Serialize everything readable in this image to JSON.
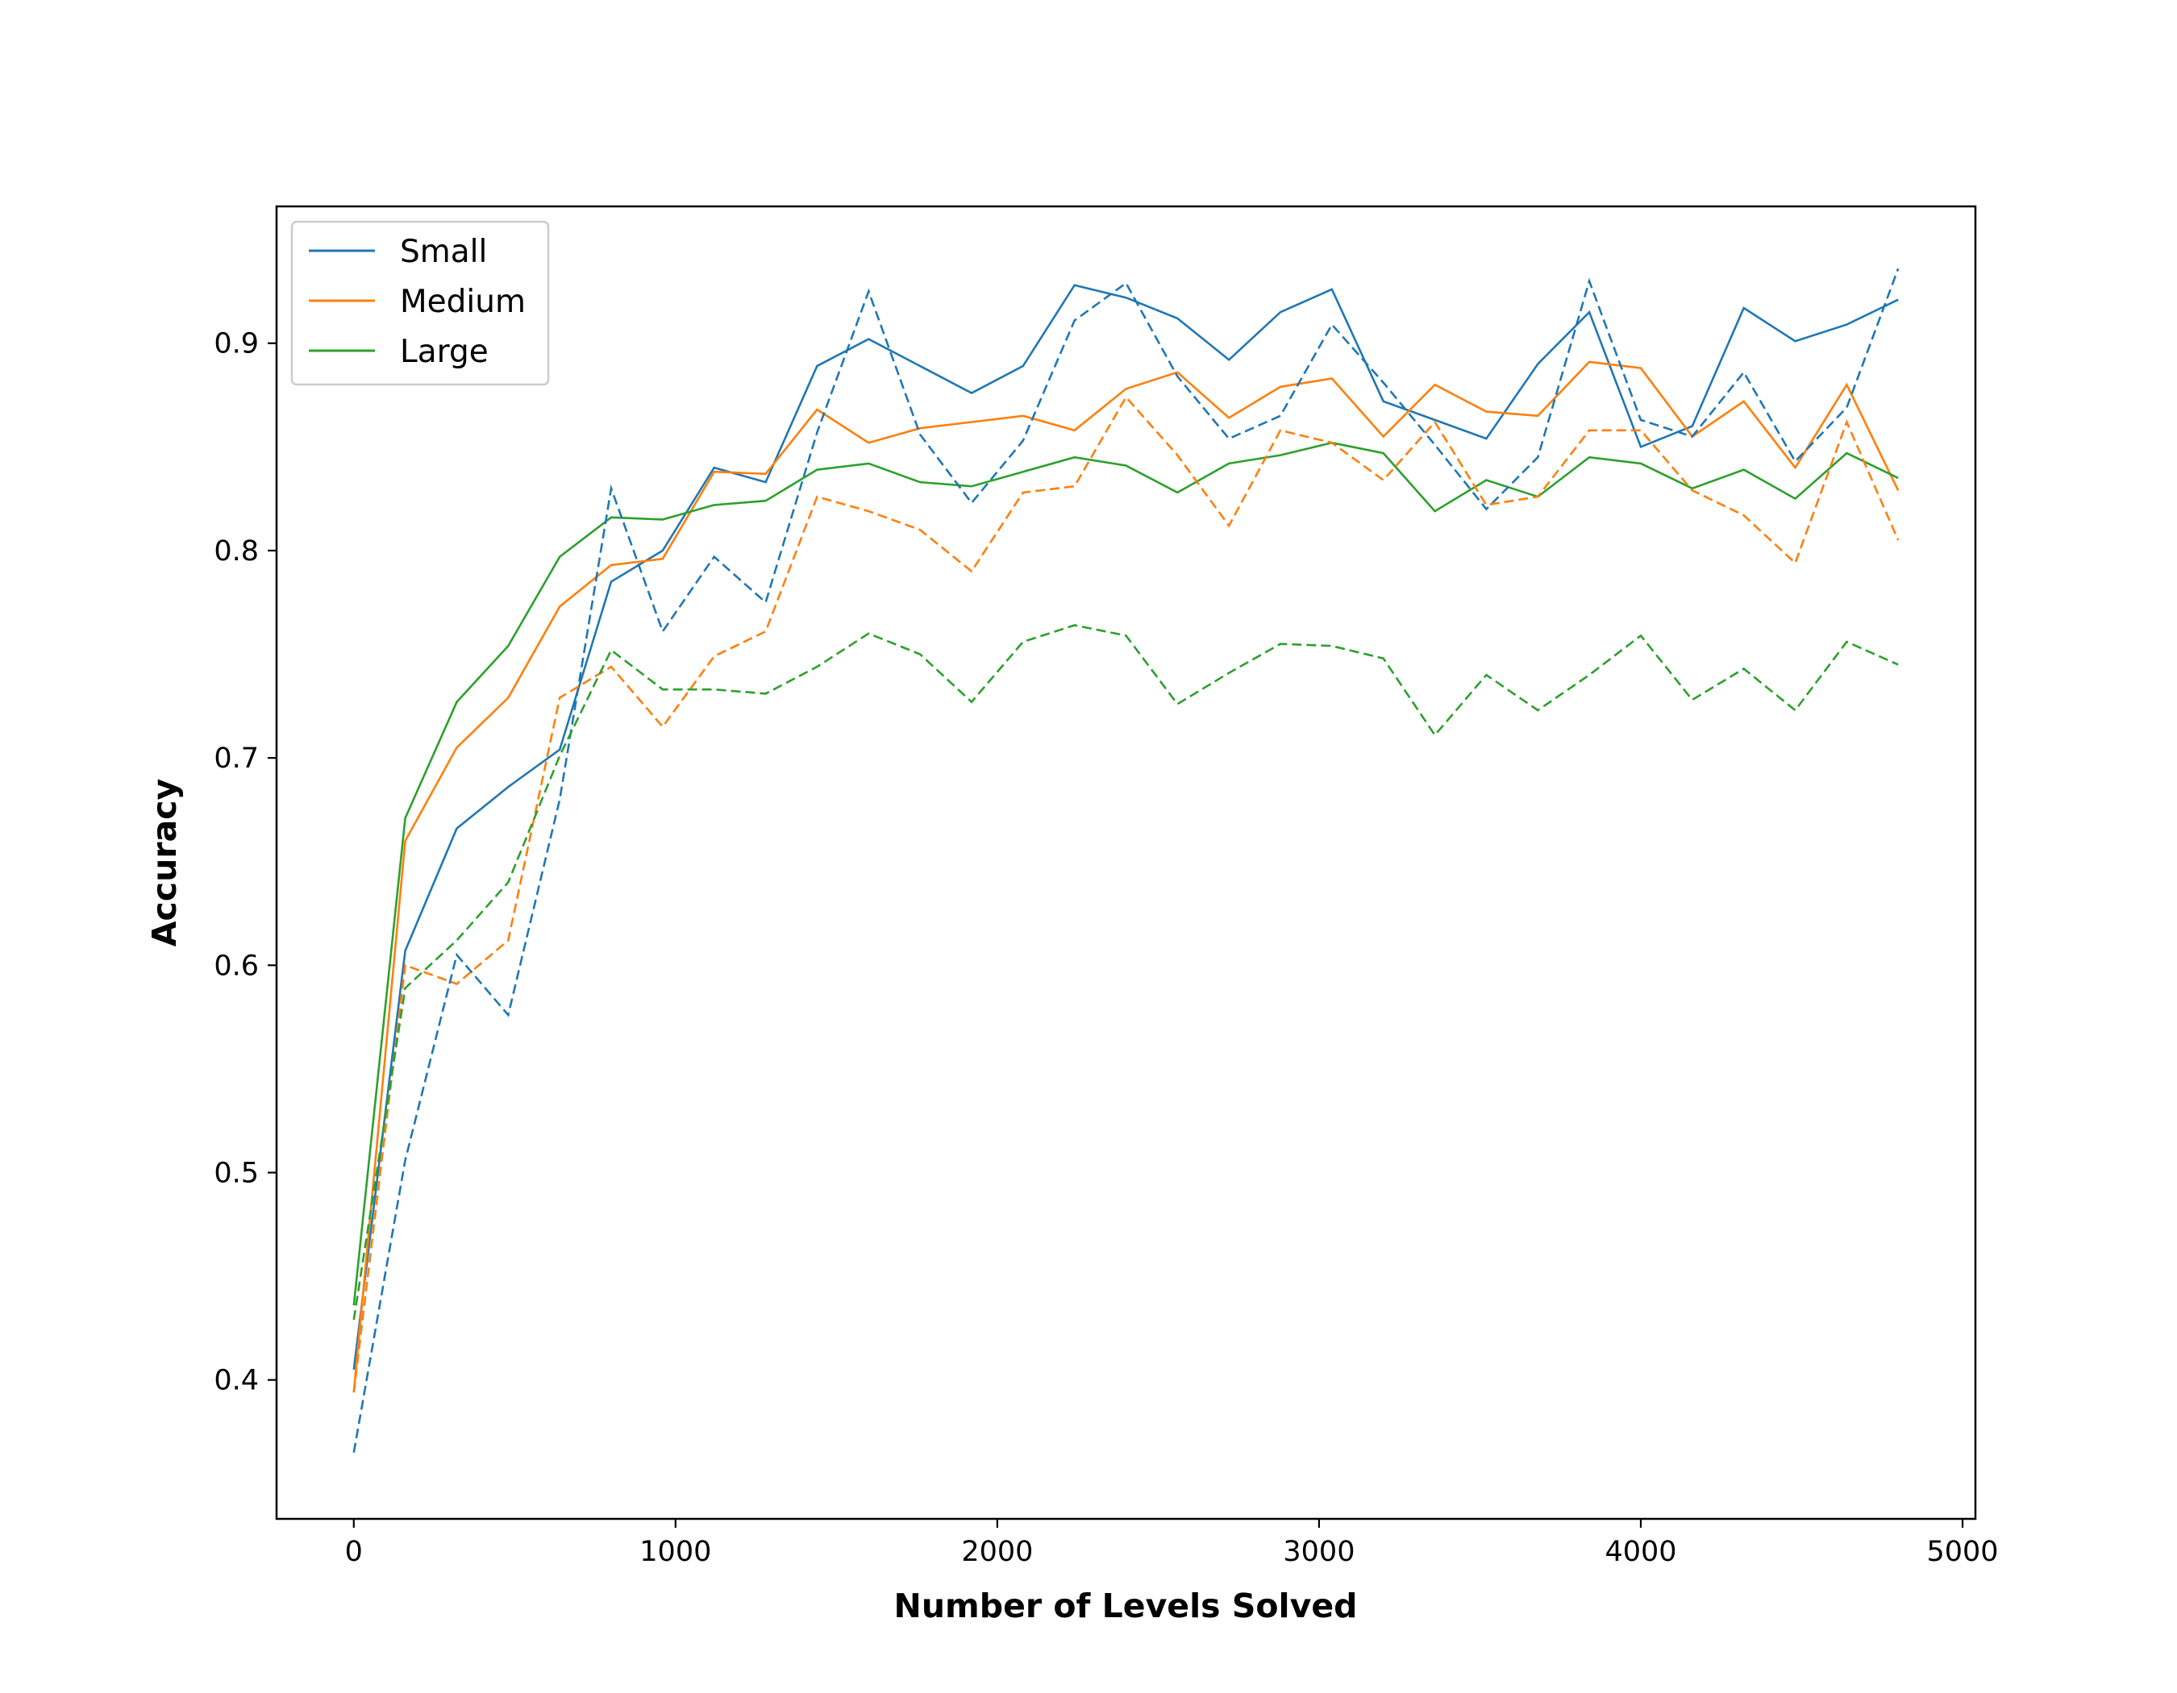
{
  "chart_data": {
    "type": "line",
    "title": "",
    "xlabel": "Number of Levels Solved",
    "ylabel": "Accuracy",
    "xlim": [
      -240,
      5040
    ],
    "ylim": [
      0.333,
      0.966
    ],
    "xticks": [
      0,
      1000,
      2000,
      3000,
      4000,
      5000
    ],
    "xtick_labels": [
      "0",
      "1000",
      "2000",
      "3000",
      "4000",
      "5000"
    ],
    "yticks": [
      0.4,
      0.5,
      0.6,
      0.7,
      0.8,
      0.9
    ],
    "ytick_labels": [
      "0.4",
      "0.5",
      "0.6",
      "0.7",
      "0.8",
      "0.9"
    ],
    "grid": false,
    "legend": {
      "position": "top-left",
      "entries": [
        "Small",
        "Medium",
        "Large"
      ]
    },
    "x": [
      0,
      160,
      320,
      480,
      640,
      800,
      960,
      1120,
      1280,
      1440,
      1600,
      1760,
      1920,
      2080,
      2240,
      2400,
      2560,
      2720,
      2880,
      3040,
      3200,
      3360,
      3520,
      3680,
      3840,
      4000,
      4160,
      4320,
      4480,
      4640,
      4800
    ],
    "series": [
      {
        "name": "Small",
        "style": "solid",
        "color": "#1f77b4",
        "values": [
          0.405,
          0.607,
          0.666,
          0.686,
          0.704,
          0.785,
          0.8,
          0.84,
          0.833,
          0.889,
          0.902,
          0.889,
          0.876,
          0.889,
          0.928,
          0.922,
          0.912,
          0.892,
          0.915,
          0.926,
          0.872,
          0.863,
          0.854,
          0.89,
          0.915,
          0.85,
          0.86,
          0.917,
          0.901,
          0.909,
          0.921
        ]
      },
      {
        "name": "Medium",
        "style": "solid",
        "color": "#ff7f0e",
        "values": [
          0.394,
          0.66,
          0.705,
          0.729,
          0.773,
          0.793,
          0.796,
          0.838,
          0.837,
          0.868,
          0.852,
          0.859,
          0.862,
          0.865,
          0.858,
          0.878,
          0.886,
          0.864,
          0.879,
          0.883,
          0.855,
          0.88,
          0.867,
          0.865,
          0.891,
          0.888,
          0.855,
          0.872,
          0.84,
          0.88,
          0.829
        ]
      },
      {
        "name": "Large",
        "style": "solid",
        "color": "#2ca02c",
        "values": [
          0.436,
          0.671,
          0.727,
          0.754,
          0.797,
          0.816,
          0.815,
          0.822,
          0.824,
          0.839,
          0.842,
          0.833,
          0.831,
          0.838,
          0.845,
          0.841,
          0.828,
          0.842,
          0.846,
          0.852,
          0.847,
          0.819,
          0.834,
          0.826,
          0.845,
          0.842,
          0.83,
          0.839,
          0.825,
          0.847,
          0.835
        ]
      },
      {
        "name": "Small (dashed)",
        "style": "dashed",
        "color": "#1f77b4",
        "values": [
          0.365,
          0.506,
          0.605,
          0.576,
          0.68,
          0.83,
          0.761,
          0.797,
          0.775,
          0.857,
          0.925,
          0.856,
          0.823,
          0.853,
          0.911,
          0.929,
          0.884,
          0.854,
          0.865,
          0.909,
          0.881,
          0.851,
          0.82,
          0.845,
          0.93,
          0.863,
          0.855,
          0.886,
          0.843,
          0.869,
          0.936
        ]
      },
      {
        "name": "Medium (dashed)",
        "style": "dashed",
        "color": "#ff7f0e",
        "values": [
          0.394,
          0.6,
          0.591,
          0.612,
          0.729,
          0.744,
          0.715,
          0.749,
          0.761,
          0.826,
          0.819,
          0.81,
          0.79,
          0.828,
          0.831,
          0.874,
          0.846,
          0.812,
          0.858,
          0.852,
          0.834,
          0.862,
          0.822,
          0.826,
          0.858,
          0.858,
          0.829,
          0.817,
          0.794,
          0.862,
          0.805
        ]
      },
      {
        "name": "Large (dashed)",
        "style": "dashed",
        "color": "#2ca02c",
        "values": [
          0.429,
          0.589,
          0.612,
          0.64,
          0.701,
          0.752,
          0.733,
          0.733,
          0.731,
          0.744,
          0.76,
          0.75,
          0.727,
          0.756,
          0.764,
          0.759,
          0.726,
          0.741,
          0.755,
          0.754,
          0.748,
          0.711,
          0.74,
          0.723,
          0.74,
          0.759,
          0.728,
          0.743,
          0.723,
          0.756,
          0.745
        ]
      }
    ]
  }
}
